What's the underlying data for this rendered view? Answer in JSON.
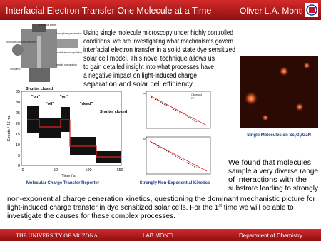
{
  "header": {
    "title": "Interfacial Electron Transfer One Molecule at a Time",
    "author": "Oliver L.A. Monti"
  },
  "intro": {
    "lines": [
      "Using single molecule microscopy under highly controlled",
      "conditions, we are investigating what mechanisms govern",
      "interfacial electron transfer in a solid state dye sensitized",
      "solar cell model. This novel technique allows us",
      "to gain detailed insight into what processes have",
      "a negative impact on light-induced charge",
      "separation and solar cell efficiency."
    ]
  },
  "apparatus": {
    "labels": [
      "electrical power",
      "fluorophore preparation",
      "substrate manipulation",
      "in-house cryostat objective",
      "sample preparation",
      "ion pump"
    ]
  },
  "trace_figure": {
    "annotations": [
      "Shutter closed",
      "\"on\"",
      "\"off\"",
      "\"on\"",
      "\"dead\"",
      "Shutter closed"
    ],
    "y_axis_label": "Counts / 25 ms",
    "x_axis_label": "Time / s",
    "yticks": [
      "35",
      "30",
      "25",
      "20",
      "15",
      "10",
      "5",
      "0"
    ],
    "xticks": [
      "0",
      "50",
      "100",
      "150"
    ],
    "caption": "Molecular Charge Transfer Reporter"
  },
  "kinetics_figure": {
    "panels": [
      "a)",
      "b)"
    ],
    "legend": [
      "Observed",
      "Fit"
    ],
    "caption": "Strongly Non-Exponential Kinetics"
  },
  "microscopy_figure": {
    "caption": [
      "Single Molecules on Sc",
      "2",
      "O",
      "3",
      "/GaN"
    ]
  },
  "findings": {
    "lines": [
      "We found that molecules",
      "sample a very diverse range",
      "of interactions with the",
      "substrate leading to strongly"
    ]
  },
  "conclusion": {
    "lines": [
      [
        "non-exponential charge generation kinetics, questioning the dominant mechanistic picture for"
      ],
      [
        "light-induced charge transfer in dye sensitized solar cells. For the 1",
        "st",
        " time we will be able to"
      ],
      [
        "investigate the causes for these complex processes."
      ]
    ]
  },
  "footer": {
    "university": "THE UNIVERSITY OF ARIZONA",
    "lab": "LAB MONTI",
    "department": "Department of Chemistry"
  }
}
